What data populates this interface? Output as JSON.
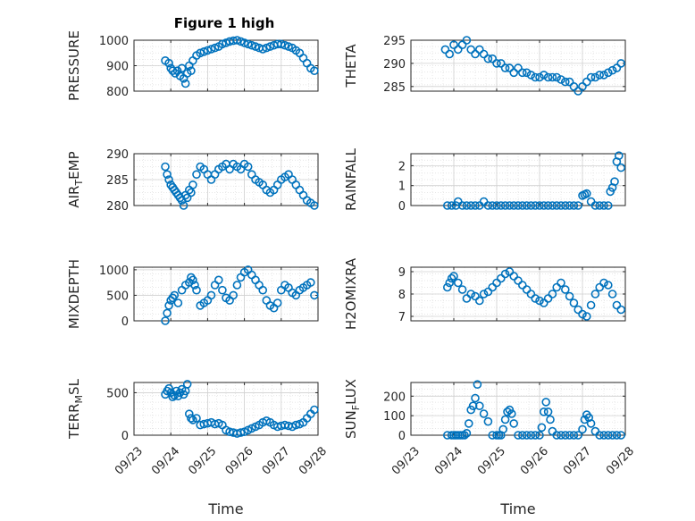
{
  "figure_title": "Figure 1 high",
  "x_axis": {
    "label": "Time",
    "tick_labels": [
      "09/23",
      "09/24",
      "09/25",
      "09/26",
      "09/27",
      "09/28"
    ],
    "range": [
      0,
      5
    ]
  },
  "colors": {
    "marker": "#0072BD",
    "axis": "#262626",
    "grid": "#dfdfdf"
  },
  "chart_data": [
    {
      "type": "scatter",
      "ylabel": "PRESSURE",
      "ylim": [
        800,
        1000
      ],
      "yticks": [
        800,
        900,
        1000
      ],
      "grid": true,
      "x": [
        0.85,
        0.95,
        1.0,
        1.05,
        1.12,
        1.18,
        1.25,
        1.3,
        1.35,
        1.4,
        1.45,
        1.5,
        1.55,
        1.6,
        1.7,
        1.8,
        1.9,
        2.0,
        2.1,
        2.2,
        2.3,
        2.4,
        2.5,
        2.6,
        2.7,
        2.8,
        2.9,
        3.0,
        3.1,
        3.2,
        3.3,
        3.4,
        3.5,
        3.6,
        3.7,
        3.8,
        3.9,
        4.0,
        4.1,
        4.2,
        4.3,
        4.4,
        4.5,
        4.6,
        4.7,
        4.8,
        4.9
      ],
      "y": [
        920,
        910,
        890,
        880,
        870,
        880,
        860,
        890,
        850,
        830,
        870,
        900,
        880,
        920,
        940,
        950,
        955,
        960,
        965,
        970,
        975,
        985,
        990,
        995,
        998,
        1000,
        995,
        990,
        985,
        980,
        975,
        970,
        965,
        970,
        975,
        980,
        985,
        985,
        980,
        975,
        970,
        960,
        950,
        930,
        910,
        890,
        880
      ]
    },
    {
      "type": "scatter",
      "ylabel": "THETA",
      "ylim": [
        284,
        295
      ],
      "yticks": [
        285,
        290,
        295
      ],
      "grid": true,
      "x": [
        0.8,
        0.9,
        1.0,
        1.1,
        1.2,
        1.3,
        1.4,
        1.5,
        1.6,
        1.7,
        1.8,
        1.9,
        2.0,
        2.1,
        2.2,
        2.3,
        2.4,
        2.5,
        2.6,
        2.7,
        2.8,
        2.9,
        3.0,
        3.1,
        3.2,
        3.3,
        3.4,
        3.5,
        3.6,
        3.7,
        3.8,
        3.9,
        4.0,
        4.1,
        4.2,
        4.3,
        4.4,
        4.5,
        4.6,
        4.7,
        4.8,
        4.9
      ],
      "y": [
        293,
        292,
        294,
        293,
        294,
        295,
        293,
        292,
        293,
        292,
        291,
        291,
        290,
        290,
        289,
        289,
        288,
        289,
        288,
        288,
        287.5,
        287,
        287,
        287.5,
        287,
        287,
        287,
        286.5,
        286,
        286,
        285,
        284,
        285,
        286,
        287,
        287,
        287.5,
        287.5,
        288,
        288.5,
        289,
        290
      ]
    },
    {
      "type": "scatter",
      "ylabel": "AIR_TEMP",
      "ylim": [
        280,
        290
      ],
      "yticks": [
        280,
        285,
        290
      ],
      "grid": true,
      "x": [
        0.85,
        0.9,
        0.95,
        1.0,
        1.05,
        1.1,
        1.15,
        1.2,
        1.25,
        1.3,
        1.35,
        1.4,
        1.45,
        1.5,
        1.55,
        1.6,
        1.7,
        1.8,
        1.9,
        2.0,
        2.1,
        2.2,
        2.3,
        2.4,
        2.5,
        2.6,
        2.7,
        2.8,
        2.9,
        3.0,
        3.1,
        3.2,
        3.3,
        3.4,
        3.5,
        3.6,
        3.7,
        3.8,
        3.9,
        4.0,
        4.1,
        4.2,
        4.3,
        4.4,
        4.5,
        4.6,
        4.7,
        4.8,
        4.9
      ],
      "y": [
        287.5,
        286,
        285,
        284,
        283.5,
        283,
        282.5,
        282,
        281.5,
        281,
        280,
        282,
        281.5,
        283,
        282.5,
        284,
        286,
        287.5,
        287,
        286,
        285,
        286,
        287,
        287.5,
        288,
        287,
        288,
        287.5,
        287,
        288,
        287.5,
        286,
        285,
        284.5,
        284,
        283,
        282.5,
        283,
        284,
        285,
        285.5,
        286,
        285,
        284,
        283,
        282,
        281,
        280.5,
        280
      ]
    },
    {
      "type": "scatter",
      "ylabel": "RAINFALL",
      "ylim": [
        0,
        2.6
      ],
      "yticks": [
        0,
        1,
        2
      ],
      "grid": true,
      "x": [
        0.85,
        0.95,
        1.05,
        1.1,
        1.2,
        1.3,
        1.4,
        1.5,
        1.6,
        1.7,
        1.8,
        1.9,
        2.0,
        2.1,
        2.2,
        2.3,
        2.4,
        2.5,
        2.6,
        2.7,
        2.8,
        2.9,
        3.0,
        3.1,
        3.2,
        3.3,
        3.4,
        3.5,
        3.6,
        3.7,
        3.8,
        3.9,
        4.0,
        4.05,
        4.1,
        4.2,
        4.3,
        4.4,
        4.5,
        4.6,
        4.65,
        4.7,
        4.75,
        4.8,
        4.85,
        4.9
      ],
      "y": [
        0,
        0,
        0,
        0.2,
        0,
        0,
        0,
        0,
        0,
        0.2,
        0,
        0,
        0,
        0,
        0,
        0,
        0,
        0,
        0,
        0,
        0,
        0,
        0,
        0,
        0,
        0,
        0,
        0,
        0,
        0,
        0,
        0,
        0.5,
        0.55,
        0.6,
        0.2,
        0,
        0,
        0,
        0,
        0.7,
        0.9,
        1.2,
        2.2,
        2.5,
        1.9
      ]
    },
    {
      "type": "scatter",
      "ylabel": "MIXDEPTH",
      "ylim": [
        0,
        1050
      ],
      "yticks": [
        0,
        500,
        1000
      ],
      "grid": true,
      "x": [
        0.85,
        0.9,
        0.95,
        1.0,
        1.05,
        1.1,
        1.2,
        1.3,
        1.4,
        1.5,
        1.55,
        1.6,
        1.65,
        1.7,
        1.8,
        1.9,
        2.0,
        2.1,
        2.2,
        2.3,
        2.4,
        2.5,
        2.6,
        2.7,
        2.8,
        2.9,
        3.0,
        3.1,
        3.2,
        3.3,
        3.4,
        3.5,
        3.6,
        3.7,
        3.8,
        3.9,
        4.0,
        4.1,
        4.2,
        4.3,
        4.4,
        4.5,
        4.6,
        4.7,
        4.8,
        4.9
      ],
      "y": [
        0,
        150,
        300,
        400,
        450,
        500,
        350,
        600,
        700,
        750,
        850,
        800,
        700,
        600,
        300,
        350,
        400,
        500,
        700,
        800,
        600,
        450,
        400,
        500,
        700,
        850,
        950,
        1000,
        900,
        800,
        700,
        600,
        400,
        300,
        250,
        350,
        600,
        700,
        650,
        550,
        500,
        600,
        650,
        700,
        750,
        500
      ]
    },
    {
      "type": "scatter",
      "ylabel": "H2OMIXRA",
      "ylim": [
        6.8,
        9.2
      ],
      "yticks": [
        7,
        8,
        9
      ],
      "grid": true,
      "x": [
        0.85,
        0.9,
        0.95,
        1.0,
        1.1,
        1.2,
        1.3,
        1.4,
        1.5,
        1.6,
        1.7,
        1.8,
        1.9,
        2.0,
        2.1,
        2.2,
        2.3,
        2.4,
        2.5,
        2.6,
        2.7,
        2.8,
        2.9,
        3.0,
        3.1,
        3.2,
        3.3,
        3.4,
        3.5,
        3.6,
        3.7,
        3.8,
        3.9,
        4.0,
        4.1,
        4.2,
        4.3,
        4.4,
        4.5,
        4.6,
        4.7,
        4.8,
        4.9
      ],
      "y": [
        8.3,
        8.5,
        8.7,
        8.8,
        8.5,
        8.2,
        7.8,
        8.0,
        7.9,
        7.7,
        8.0,
        8.1,
        8.3,
        8.5,
        8.7,
        8.9,
        9.0,
        8.8,
        8.6,
        8.4,
        8.2,
        8.0,
        7.8,
        7.7,
        7.6,
        7.8,
        8.0,
        8.3,
        8.5,
        8.2,
        7.9,
        7.6,
        7.3,
        7.1,
        7.0,
        7.5,
        8.0,
        8.3,
        8.5,
        8.4,
        8.0,
        7.5,
        7.3
      ]
    },
    {
      "type": "scatter",
      "ylabel": "TERR_MSL",
      "ylim": [
        0,
        620
      ],
      "yticks": [
        0,
        500
      ],
      "grid": true,
      "x": [
        0.85,
        0.9,
        0.95,
        1.0,
        1.05,
        1.1,
        1.15,
        1.2,
        1.25,
        1.3,
        1.35,
        1.4,
        1.45,
        1.5,
        1.55,
        1.6,
        1.7,
        1.8,
        1.9,
        2.0,
        2.1,
        2.2,
        2.3,
        2.4,
        2.5,
        2.6,
        2.7,
        2.8,
        2.9,
        3.0,
        3.1,
        3.2,
        3.3,
        3.4,
        3.5,
        3.6,
        3.7,
        3.8,
        3.9,
        4.0,
        4.1,
        4.2,
        4.3,
        4.4,
        4.5,
        4.6,
        4.7,
        4.8,
        4.9
      ],
      "y": [
        480,
        520,
        550,
        500,
        450,
        470,
        520,
        460,
        500,
        540,
        480,
        520,
        600,
        250,
        200,
        180,
        200,
        120,
        130,
        140,
        150,
        130,
        140,
        120,
        60,
        40,
        30,
        20,
        30,
        40,
        60,
        80,
        100,
        120,
        150,
        170,
        150,
        120,
        100,
        110,
        120,
        110,
        100,
        120,
        130,
        150,
        200,
        250,
        300
      ]
    },
    {
      "type": "scatter",
      "ylabel": "SUN_FLUX",
      "ylim": [
        0,
        270
      ],
      "yticks": [
        0,
        100,
        200
      ],
      "grid": true,
      "x": [
        0.85,
        0.95,
        1.0,
        1.05,
        1.1,
        1.15,
        1.2,
        1.25,
        1.3,
        1.35,
        1.4,
        1.45,
        1.5,
        1.55,
        1.6,
        1.7,
        1.8,
        1.9,
        2.0,
        2.05,
        2.1,
        2.15,
        2.2,
        2.25,
        2.3,
        2.35,
        2.4,
        2.5,
        2.6,
        2.7,
        2.8,
        2.9,
        3.0,
        3.05,
        3.1,
        3.15,
        3.2,
        3.25,
        3.3,
        3.4,
        3.5,
        3.6,
        3.7,
        3.8,
        3.9,
        4.0,
        4.05,
        4.1,
        4.15,
        4.2,
        4.3,
        4.4,
        4.5,
        4.6,
        4.7,
        4.8,
        4.9
      ],
      "y": [
        0,
        0,
        0,
        0,
        0,
        0,
        0,
        0,
        10,
        60,
        130,
        150,
        190,
        260,
        150,
        110,
        70,
        0,
        0,
        0,
        0,
        30,
        80,
        120,
        130,
        110,
        60,
        0,
        0,
        0,
        0,
        0,
        0,
        40,
        120,
        170,
        120,
        80,
        20,
        0,
        0,
        0,
        0,
        0,
        0,
        30,
        80,
        105,
        90,
        60,
        20,
        0,
        0,
        0,
        0,
        0,
        0
      ]
    }
  ]
}
